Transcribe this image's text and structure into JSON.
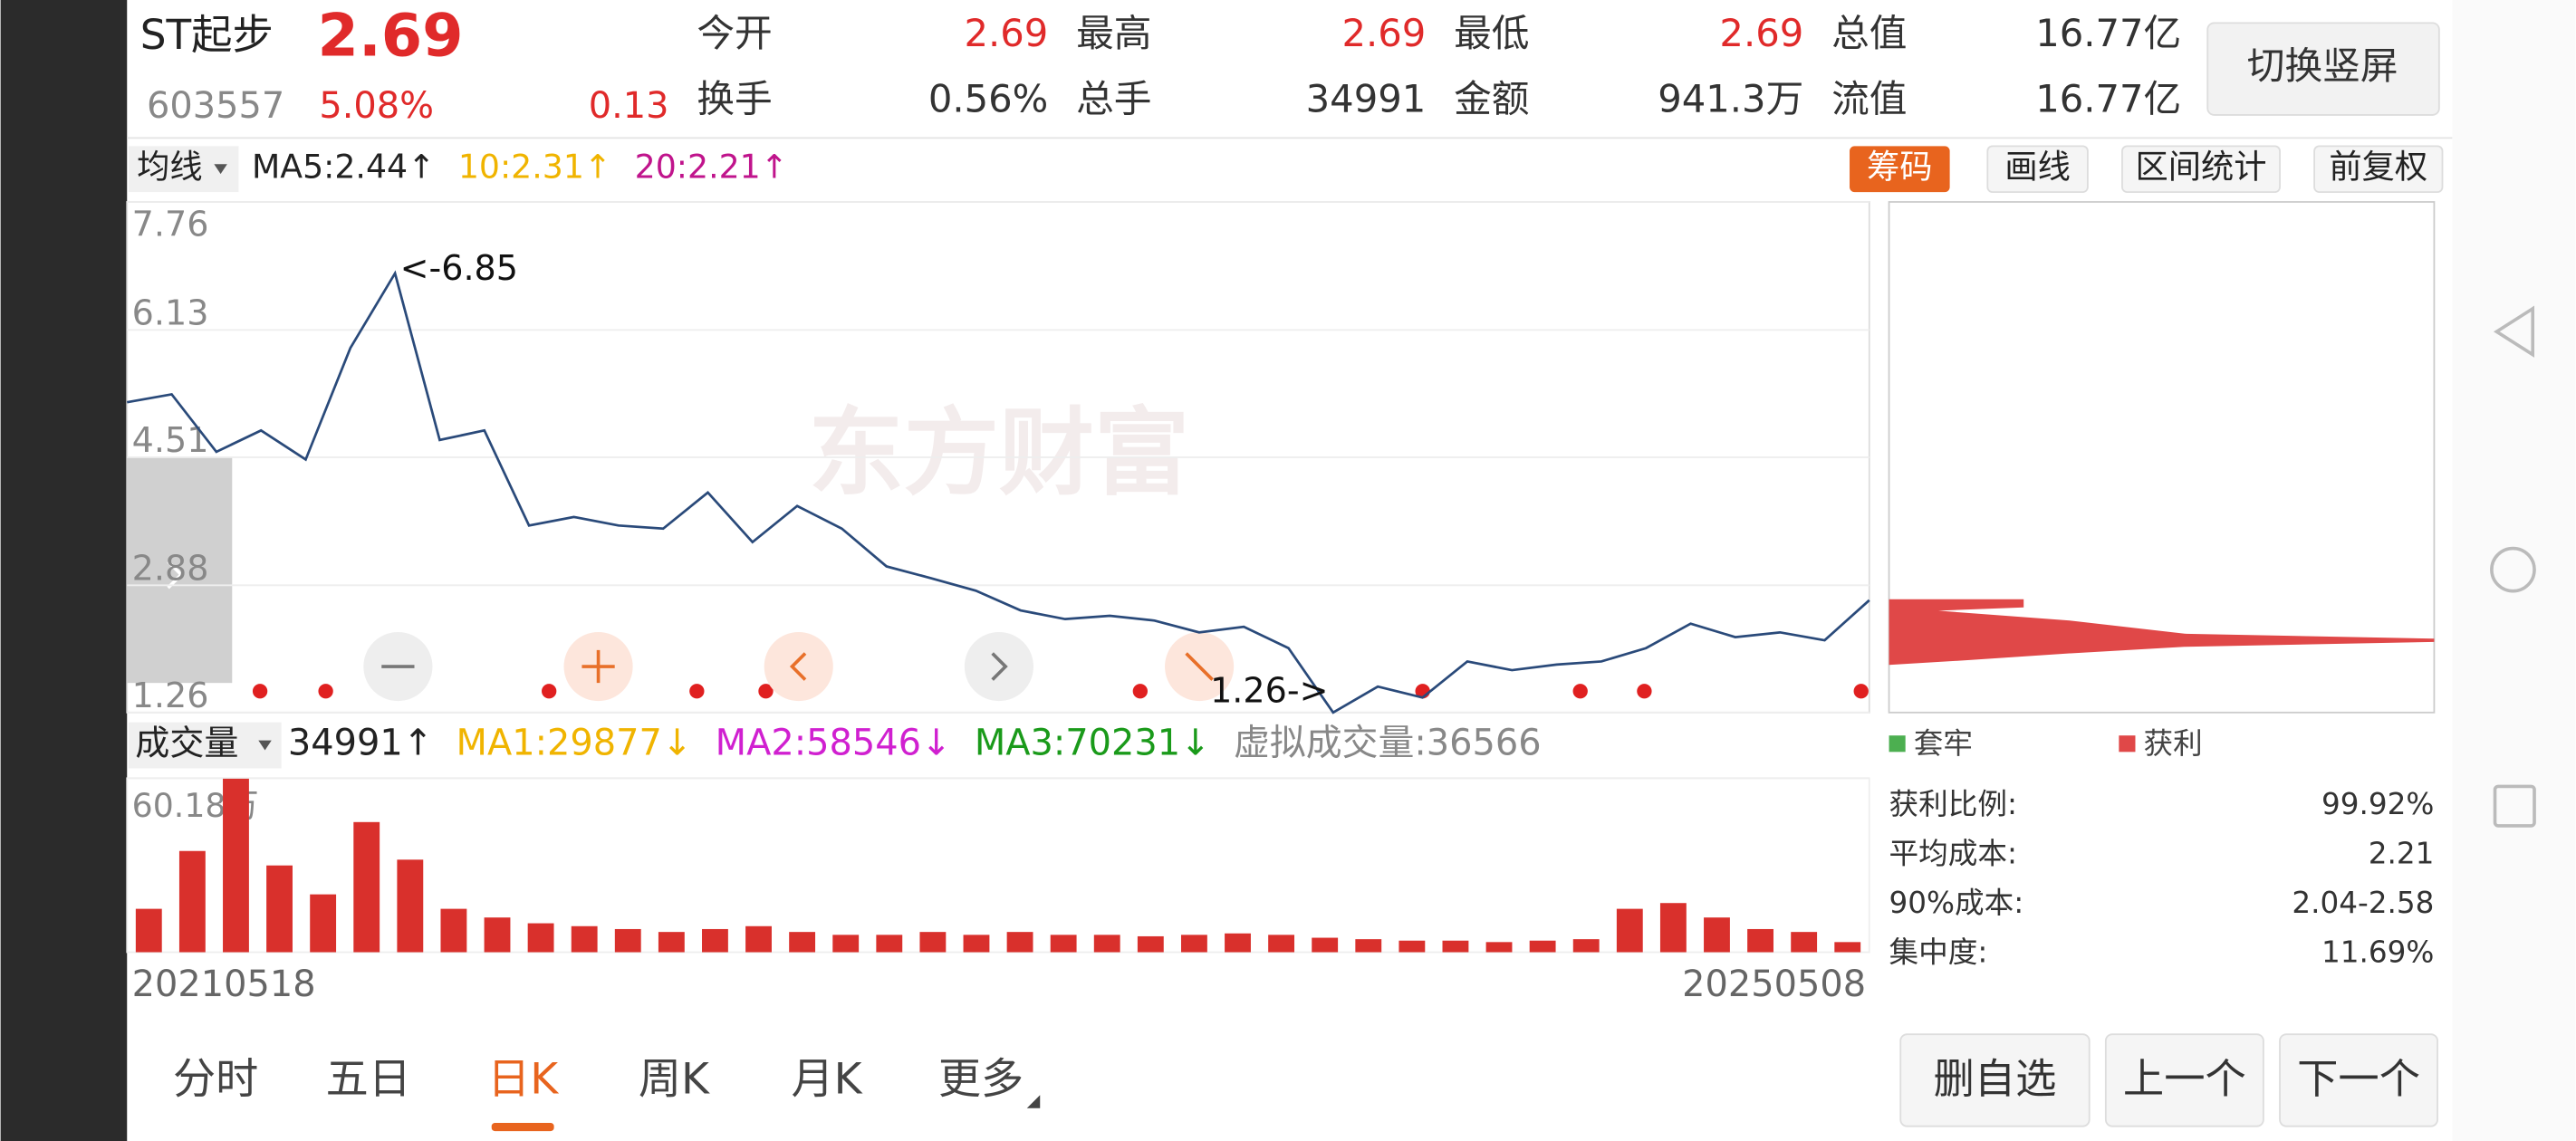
{
  "header": {
    "name": "ST起步",
    "price": "2.69",
    "code": "603557",
    "change_pct": "5.08%",
    "change": "0.13",
    "quotes": [
      {
        "label": "今开",
        "value": "2.69"
      },
      {
        "label": "最高",
        "value": "2.69"
      },
      {
        "label": "最低",
        "value": "2.69"
      },
      {
        "label": "总值",
        "value": "16.77亿"
      },
      {
        "label": "换手",
        "value": "0.56%"
      },
      {
        "label": "总手",
        "value": "34991"
      },
      {
        "label": "金额",
        "value": "941.3万"
      },
      {
        "label": "流值",
        "value": "16.77亿"
      }
    ],
    "button": "切换竖屏"
  },
  "ma_bar": {
    "selector": "均线",
    "items": [
      {
        "text": "MA5:2.44↑",
        "color": "#222222"
      },
      {
        "text": "10:2.31↑",
        "color": "#f0b400"
      },
      {
        "text": "20:2.21↑",
        "color": "#c0148c"
      }
    ]
  },
  "tools": [
    "筹码",
    "画线",
    "区间统计",
    "前复权"
  ],
  "watermark": "东方财富",
  "chart_data": [
    {
      "type": "line",
      "color": "#2a4a7a",
      "values": [
        5.21,
        5.31,
        4.58,
        4.85,
        4.48,
        5.9,
        6.85,
        4.73,
        4.85,
        3.64,
        3.75,
        3.64,
        3.6,
        4.06,
        3.43,
        3.89,
        3.6,
        3.12,
        2.97,
        2.81,
        2.56,
        2.45,
        2.49,
        2.43,
        2.28,
        2.35,
        2.08,
        1.26,
        1.59,
        1.45,
        1.91,
        1.8,
        1.87,
        1.91,
        2.08,
        2.39,
        2.22,
        2.28,
        2.18,
        2.69
      ],
      "ylim": [
        1.26,
        7.76
      ],
      "yticks": [
        1.26,
        2.88,
        4.51,
        6.13,
        7.76
      ],
      "grid": true,
      "annotations": {
        "max": "<-6.85",
        "min": "1.26->"
      }
    },
    {
      "type": "bar",
      "color": "#d9302c",
      "categories": [
        "20210518",
        null,
        null,
        null,
        null,
        null,
        null,
        null,
        null,
        null,
        null,
        null,
        null,
        null,
        null,
        null,
        null,
        null,
        null,
        null,
        null,
        null,
        null,
        null,
        null,
        null,
        null,
        null,
        null,
        null,
        null,
        null,
        null,
        null,
        null,
        null,
        null,
        null,
        null,
        "20250508"
      ],
      "values": [
        150000,
        350000,
        600000,
        300000,
        200000,
        450000,
        320000,
        150000,
        120000,
        100000,
        90000,
        80000,
        70000,
        80000,
        90000,
        70000,
        60000,
        60000,
        70000,
        60000,
        70000,
        60000,
        60000,
        55000,
        60000,
        65000,
        60000,
        50000,
        45000,
        40000,
        40000,
        35000,
        40000,
        45000,
        150000,
        170000,
        120000,
        80000,
        70000,
        34991
      ],
      "ylim": [
        0,
        601800
      ],
      "yticks": [
        {
          "value": 601800,
          "label": "60.18万"
        }
      ]
    }
  ],
  "volume_legend": {
    "selector": "成交量",
    "items": [
      {
        "text": "34991↑",
        "color": "#222222"
      },
      {
        "text": "MA1:29877↓",
        "color": "#f0b400"
      },
      {
        "text": "MA2:58546↓",
        "color": "#d020d0"
      },
      {
        "text": "MA3:70231↓",
        "color": "#1a9a1a"
      },
      {
        "text": "虚拟成交量:36566",
        "color": "#888888"
      }
    ]
  },
  "chips": {
    "legend": [
      {
        "text": "套牢",
        "color": "#4caf50"
      },
      {
        "text": "获利",
        "color": "#e04848"
      }
    ],
    "stats": [
      {
        "label": "获利比例:",
        "value": "99.92%"
      },
      {
        "label": "平均成本:",
        "value": "2.21"
      },
      {
        "label": "90%成本:",
        "value": "2.04-2.58"
      },
      {
        "label": "集中度:",
        "value": "11.69%"
      }
    ]
  },
  "tabs": [
    "分时",
    "五日",
    "日K",
    "周K",
    "月K",
    "更多"
  ],
  "active_tab": 2,
  "actions": [
    "删自选",
    "上一个",
    "下一个"
  ]
}
